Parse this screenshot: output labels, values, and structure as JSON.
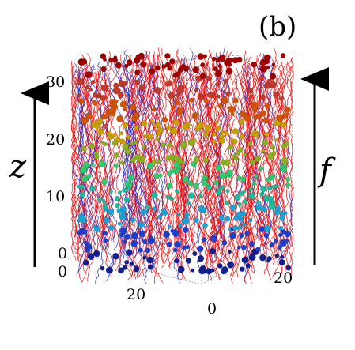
{
  "panel_label": "(b)",
  "left_arrow_label": "z",
  "right_arrow_label": "f",
  "z_ticks": [
    "30",
    "20",
    "10",
    "0"
  ],
  "depth_ticks_left": [
    "0",
    "20"
  ],
  "depth_ticks_right": [
    "0",
    "20"
  ],
  "colors": {
    "chains": "#ee1111",
    "chains_blue": "#2233cc",
    "gradient": [
      "#a00000",
      "#c0392b",
      "#d35400",
      "#c8a000",
      "#8ab020",
      "#2ecc71",
      "#1abc9c",
      "#16a5d6",
      "#1d3fcf",
      "#10208f"
    ]
  }
}
